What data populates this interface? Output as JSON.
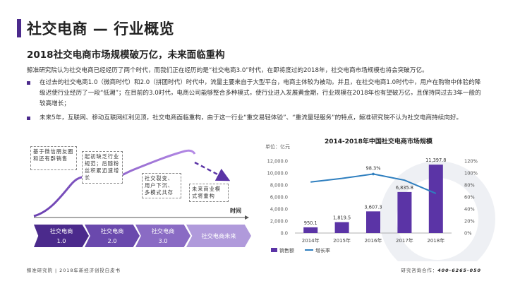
{
  "header": {
    "title": "社交电商 — 行业概览",
    "subtitle": "2018社交电商市场规模破万亿，未来面临重构"
  },
  "body": {
    "intro": "鲸准研究院认为社交电商已经经历了两个时代，而我们正在经历的是“社交电商3.0”时代，在即将度过的2018年，社交电商市场规模也将会突破万亿。",
    "bullets": [
      "在过去的社交电商1.0（微商时代）和2.0（拼团时代）时代中，流量主要来自于大型平台，电商主体较为被动。并且，在社交电商1.0时代中，用户在购物中体验的降级迟使行业经历了一段“低潮”；在目前的3.0时代，电商公司能够整合多种模式，使行业进入发展黄金期，行业规模在2018年也有望破万亿，且保持同过去3年一般的较高增长；",
      "未来5年，互联网、移动互联网红利见顶，社交电商面临重构，由于这一行业“重交易轻体验”、“重流量轻服务”的特点，鲸准研究院不认为社交电商持续向好。"
    ]
  },
  "diagram": {
    "notes": [
      "基于微信朋友圈和还有群销售",
      "起初缺乏行业规范；后随粉丝积累迅速增长",
      "社交裂变、用户下沉、多模式共存",
      "未来商业模式将重构"
    ],
    "time_label": "时间",
    "stages": [
      {
        "name": "社交电商",
        "num": "1.0"
      },
      {
        "name": "社交电商",
        "num": "2.0"
      },
      {
        "name": "社交电商",
        "num": "3.0"
      },
      {
        "name": "社交电商未来",
        "num": ""
      }
    ],
    "stage_colors": [
      "#4b2a8c",
      "#6a49ad",
      "#8a6bc4",
      "#b09adb"
    ]
  },
  "chart_data": {
    "type": "bar",
    "title": "2014-2018年中国社交电商市场规模",
    "unit_label": "单位：亿元",
    "categories": [
      "2014年",
      "2015年",
      "2016年",
      "2017年",
      "2018年"
    ],
    "series": [
      {
        "name": "销售额",
        "type": "bar",
        "values": [
          950.1,
          1819.5,
          3607.3,
          6835.8,
          11397.8
        ],
        "color": "#5b34a6"
      },
      {
        "name": "增长率",
        "type": "line",
        "axis": "right",
        "values": [
          null,
          null,
          98.3,
          null,
          null
        ],
        "color": "#2f7fbf"
      }
    ],
    "bar_labels": [
      "950.1",
      "1,819.5",
      "3,607.3",
      "6,835.8",
      "11,397.8"
    ],
    "line_label": "98.3%",
    "y_left_ticks": [
      "0.0",
      "2,000.0",
      "4,000.0",
      "6,000.0",
      "8,000.0",
      "10,000.0",
      "12,000.0"
    ],
    "y_left_lim": [
      0,
      12000
    ],
    "y_right_ticks": [
      "0%",
      "20%",
      "40%",
      "60%",
      "80%",
      "100%",
      "120%"
    ],
    "y_right_lim": [
      0,
      120
    ],
    "line_estimates": [
      85,
      91,
      98.3,
      88,
      66
    ],
    "legend": [
      "销售额",
      "增长率"
    ]
  },
  "footer": {
    "left": "鲸准研究院 | 2018年新经济创投白皮书",
    "right_label": "研究咨询合作：",
    "right_phone": "400-6265-050"
  }
}
